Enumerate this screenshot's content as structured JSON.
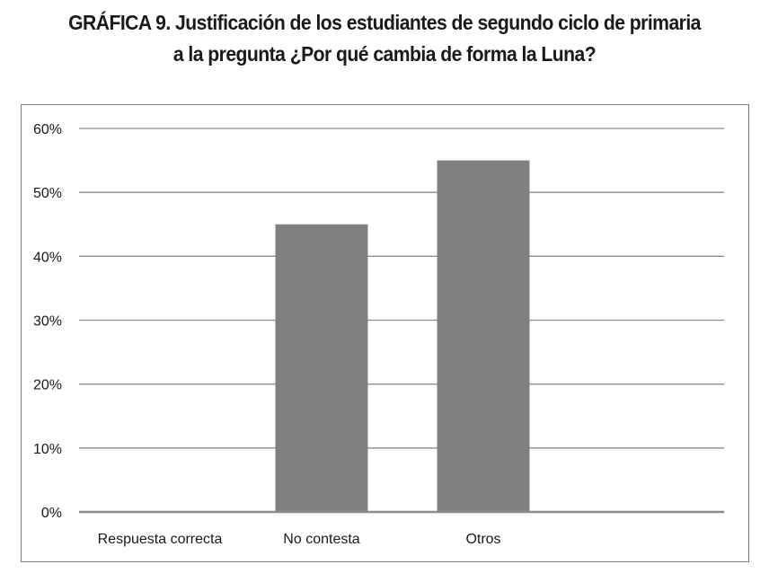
{
  "header": {
    "title_prefix": "GRÁFICA 9.",
    "title_line1": "Justificación de los estudiantes de segundo ciclo de primaria",
    "title_line2": "a la pregunta ¿Por qué cambia de forma la Luna?"
  },
  "chart_data": {
    "type": "bar",
    "title": "GRÁFICA 9. Justificación de los estudiantes de segundo ciclo de primaria a la pregunta ¿Por qué cambia de forma la Luna?",
    "xlabel": "",
    "ylabel": "",
    "categories": [
      "Respuesta correcta",
      "No contesta",
      "Otros"
    ],
    "values": [
      0,
      45,
      55
    ],
    "value_unit": "%",
    "ylim": [
      0,
      60
    ],
    "yticks": [
      0,
      10,
      20,
      30,
      40,
      50,
      60
    ],
    "ytick_labels": [
      "0%",
      "10%",
      "20%",
      "30%",
      "40%",
      "50%",
      "60%"
    ],
    "grid": true,
    "legend": "none",
    "colors": {
      "bar": "#808080",
      "grid": "#8c8c8c",
      "axis": "#8c8c8c",
      "frame": "#7a7a7a"
    }
  }
}
